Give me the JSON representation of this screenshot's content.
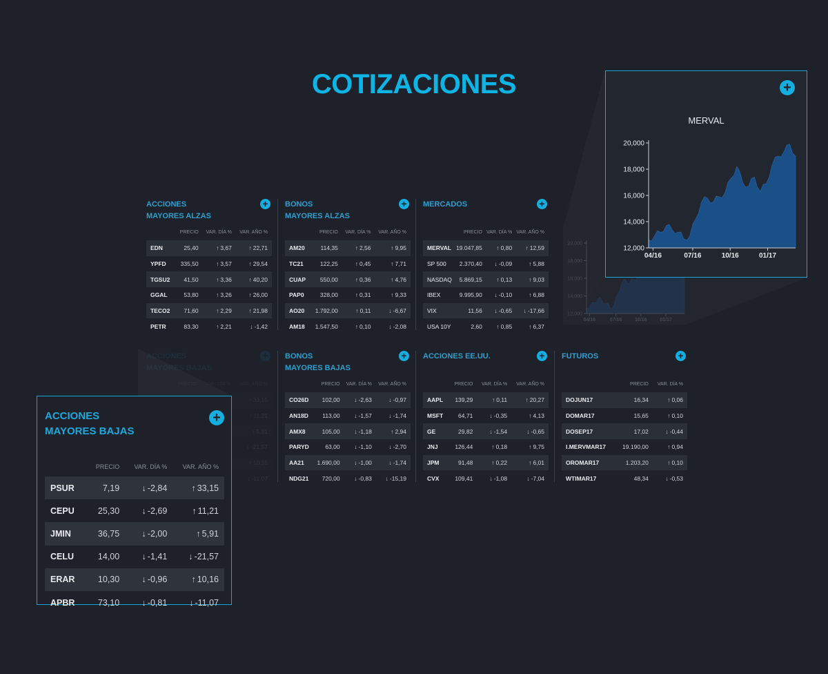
{
  "page": {
    "title": "COTIZACIONES"
  },
  "headers": {
    "precio": "PRECIO",
    "var_dia": "VAR. DÍA %",
    "var_anio": "VAR. AÑO %"
  },
  "arrows": {
    "up": "↑",
    "down": "↓"
  },
  "plus_icon": "+",
  "colors": {
    "accent": "#0db4e4",
    "up": "#3fbf4f",
    "down": "#d9292e",
    "background": "#1e2129",
    "chart_fill": "#1b4f88"
  },
  "panels": {
    "acciones_alzas": {
      "title1": "ACCIONES",
      "title2": "MAYORES ALZAS",
      "rows": [
        {
          "s": "EDN",
          "p": "25,40",
          "d": "3,67",
          "dd": "up",
          "y": "22,71",
          "yd": "up"
        },
        {
          "s": "YPFD",
          "p": "335,50",
          "d": "3,57",
          "dd": "up",
          "y": "29,54",
          "yd": "up"
        },
        {
          "s": "TGSU2",
          "p": "41,50",
          "d": "3,36",
          "dd": "up",
          "y": "40,20",
          "yd": "up"
        },
        {
          "s": "GGAL",
          "p": "53,80",
          "d": "3,26",
          "dd": "up",
          "y": "26,00",
          "yd": "up"
        },
        {
          "s": "TECO2",
          "p": "71,60",
          "d": "2,29",
          "dd": "up",
          "y": "21,98",
          "yd": "up"
        },
        {
          "s": "PETR",
          "p": "83,30",
          "d": "2,21",
          "dd": "up",
          "y": "-1,42",
          "yd": "down"
        }
      ]
    },
    "bonos_alzas": {
      "title1": "BONOS",
      "title2": "MAYORES ALZAS",
      "rows": [
        {
          "s": "AM20",
          "p": "114,35",
          "d": "2,56",
          "dd": "up",
          "y": "9,95",
          "yd": "up"
        },
        {
          "s": "TC21",
          "p": "122,25",
          "d": "0,45",
          "dd": "up",
          "y": "7,71",
          "yd": "up"
        },
        {
          "s": "CUAP",
          "p": "550,00",
          "d": "0,36",
          "dd": "up",
          "y": "4,76",
          "yd": "up"
        },
        {
          "s": "PAP0",
          "p": "328,00",
          "d": "0,31",
          "dd": "up",
          "y": "9,33",
          "yd": "up"
        },
        {
          "s": "AO20",
          "p": "1.792,00",
          "d": "0,11",
          "dd": "up",
          "y": "-6,67",
          "yd": "down"
        },
        {
          "s": "AM18",
          "p": "1.547,50",
          "d": "0,10",
          "dd": "up",
          "y": "-2,08",
          "yd": "down"
        }
      ]
    },
    "mercados": {
      "title1": "MERCADOS",
      "title2": "",
      "rows": [
        {
          "s": "MERVAL",
          "p": "19.047,85",
          "d": "0,80",
          "dd": "up",
          "y": "12,59",
          "yd": "up"
        },
        {
          "s": "SP 500",
          "p": "2.370,40",
          "d": "-0,09",
          "dd": "down",
          "y": "5,88",
          "yd": "up"
        },
        {
          "s": "NASDAQ",
          "p": "5.869,15",
          "d": "0,13",
          "dd": "up",
          "y": "9,03",
          "yd": "up"
        },
        {
          "s": "IBEX",
          "p": "9.995,90",
          "d": "-0,10",
          "dd": "down",
          "y": "6,88",
          "yd": "up"
        },
        {
          "s": "VIX",
          "p": "11,56",
          "d": "-0,65",
          "dd": "down",
          "y": "-17,66",
          "yd": "down"
        },
        {
          "s": "USA 10Y",
          "p": "2,60",
          "d": "0,85",
          "dd": "up",
          "y": "6,37",
          "yd": "up"
        }
      ]
    },
    "acciones_bajas": {
      "title1": "ACCIONES",
      "title2": "MAYORES BAJAS",
      "rows": [
        {
          "s": "PSUR",
          "p": "7,19",
          "d": "-2,84",
          "dd": "down",
          "y": "33,15",
          "yd": "up"
        },
        {
          "s": "CEPU",
          "p": "25,30",
          "d": "-2,69",
          "dd": "down",
          "y": "11,21",
          "yd": "up"
        },
        {
          "s": "JMIN",
          "p": "36,75",
          "d": "-2,00",
          "dd": "down",
          "y": "5,91",
          "yd": "up"
        },
        {
          "s": "CELU",
          "p": "14,00",
          "d": "-1,41",
          "dd": "down",
          "y": "-21,57",
          "yd": "down"
        },
        {
          "s": "ERAR",
          "p": "10,30",
          "d": "-0,96",
          "dd": "down",
          "y": "10,16",
          "yd": "up"
        },
        {
          "s": "APBR",
          "p": "73,10",
          "d": "-0,81",
          "dd": "down",
          "y": "-11,07",
          "yd": "down"
        }
      ]
    },
    "bonos_bajas": {
      "title1": "BONOS",
      "title2": "MAYORES BAJAS",
      "rows": [
        {
          "s": "CO26D",
          "p": "102,00",
          "d": "-2,63",
          "dd": "down",
          "y": "-0,97",
          "yd": "down"
        },
        {
          "s": "AN18D",
          "p": "113,00",
          "d": "-1,57",
          "dd": "down",
          "y": "-1,74",
          "yd": "down"
        },
        {
          "s": "AMX8",
          "p": "105,00",
          "d": "-1,18",
          "dd": "down",
          "y": "2,94",
          "yd": "up"
        },
        {
          "s": "PARYD",
          "p": "63,00",
          "d": "-1,10",
          "dd": "down",
          "y": "-2,70",
          "yd": "down"
        },
        {
          "s": "AA21",
          "p": "1.690,00",
          "d": "-1,00",
          "dd": "down",
          "y": "-1,74",
          "yd": "down"
        },
        {
          "s": "NDG21",
          "p": "720,00",
          "d": "-0,83",
          "dd": "down",
          "y": "-15,19",
          "yd": "down"
        }
      ]
    },
    "acciones_eeuu": {
      "title1": "ACCIONES EE.UU.",
      "title2": "",
      "rows": [
        {
          "s": "AAPL",
          "p": "139,29",
          "d": "0,11",
          "dd": "up",
          "y": "20,27",
          "yd": "up"
        },
        {
          "s": "MSFT",
          "p": "64,71",
          "d": "-0,35",
          "dd": "down",
          "y": "4,13",
          "yd": "up"
        },
        {
          "s": "GE",
          "p": "29,82",
          "d": "-1,54",
          "dd": "down",
          "y": "-0,65",
          "yd": "down"
        },
        {
          "s": "JNJ",
          "p": "126,44",
          "d": "0,18",
          "dd": "up",
          "y": "9,75",
          "yd": "up"
        },
        {
          "s": "JPM",
          "p": "91,48",
          "d": "0,22",
          "dd": "up",
          "y": "6,01",
          "yd": "up"
        },
        {
          "s": "CVX",
          "p": "109,41",
          "d": "-1,08",
          "dd": "down",
          "y": "-7,04",
          "yd": "down"
        }
      ]
    },
    "futuros": {
      "title1": "FUTUROS",
      "title2": "",
      "rows": [
        {
          "s": "DOJUN17",
          "p": "16,34",
          "d": "0,06",
          "dd": "up"
        },
        {
          "s": "DOMAR17",
          "p": "15,65",
          "d": "0,10",
          "dd": "up"
        },
        {
          "s": "DOSEP17",
          "p": "17,02",
          "d": "-0,44",
          "dd": "down"
        },
        {
          "s": "I.MERVMAR17",
          "p": "19.190,00",
          "d": "0,94",
          "dd": "up"
        },
        {
          "s": "OROMAR17",
          "p": "1.203,20",
          "d": "0,10",
          "dd": "up"
        },
        {
          "s": "WTIMAR17",
          "p": "48,34",
          "d": "-0,53",
          "dd": "down"
        }
      ]
    }
  },
  "chart_data": {
    "type": "area",
    "title": "MERVAL",
    "x_labels": [
      "04/16",
      "07/16",
      "10/16",
      "01/17"
    ],
    "ylim": [
      12000,
      20000
    ],
    "y_ticks": [
      "12,000",
      "14,000",
      "16,000",
      "18,000",
      "20,000"
    ],
    "x": [
      0,
      0.04,
      0.08,
      0.12,
      0.16,
      0.2,
      0.24,
      0.28,
      0.32,
      0.36,
      0.4,
      0.44,
      0.48,
      0.52,
      0.56,
      0.6,
      0.64,
      0.68,
      0.72,
      0.76,
      0.8,
      0.84,
      0.88,
      0.92,
      0.96,
      1.0
    ],
    "values": [
      12600,
      12900,
      13200,
      13700,
      13400,
      13200,
      12700,
      12900,
      14200,
      15500,
      15800,
      15500,
      15900,
      16200,
      17300,
      18200,
      17000,
      16700,
      17400,
      16300,
      16900,
      18300,
      19000,
      19300,
      19900,
      19000
    ]
  }
}
